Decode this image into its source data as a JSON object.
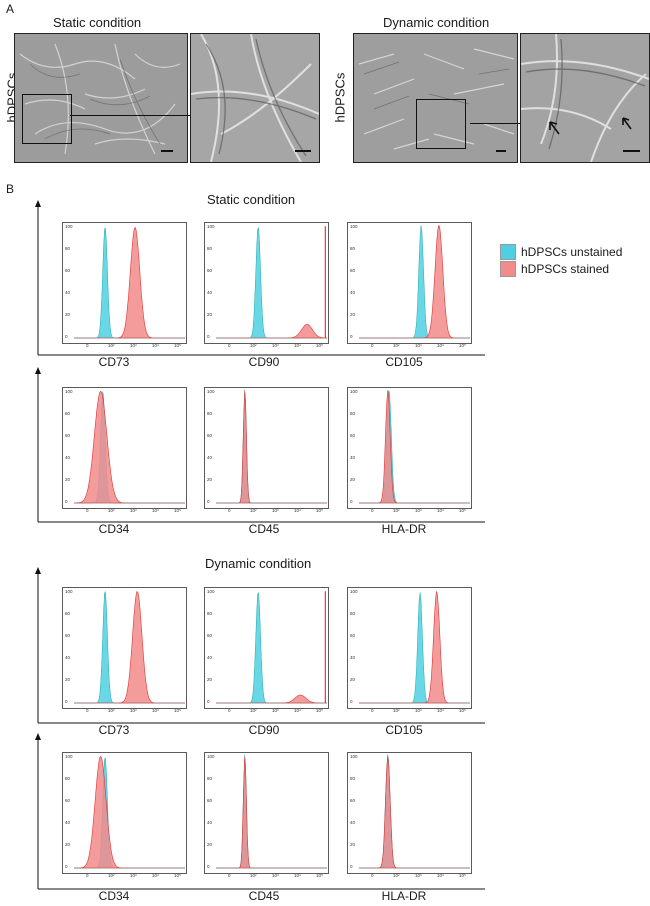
{
  "panel_a": {
    "letter": "A",
    "static_title": "Static condition",
    "dynamic_title": "Dynamic condition",
    "row_label": "hDPSCs"
  },
  "panel_b": {
    "letter": "B",
    "static_title": "Static condition",
    "dynamic_title": "Dynamic condition"
  },
  "legend": {
    "unstained": "hDPSCs unstained",
    "stained": "hDPSCs stained",
    "unstained_color": "#4fd0e2",
    "stained_color": "#f28b8b"
  },
  "markers": {
    "cd73": "CD73",
    "cd90": "CD90",
    "cd105": "CD105",
    "cd34": "CD34",
    "cd45": "CD45",
    "hladr": "HLA-DR"
  },
  "chart_data": [
    {
      "type": "area",
      "condition": "Static condition",
      "marker": "CD73",
      "ylim": [
        0,
        100
      ],
      "unstained_peak": 98,
      "stained_peak": 97
    },
    {
      "type": "area",
      "condition": "Static condition",
      "marker": "CD90",
      "ylim": [
        0,
        100
      ],
      "unstained_peak": 98,
      "stained_peak": 12
    },
    {
      "type": "area",
      "condition": "Static condition",
      "marker": "CD105",
      "ylim": [
        0,
        100
      ],
      "unstained_peak": 99,
      "stained_peak": 99
    },
    {
      "type": "area",
      "condition": "Static condition",
      "marker": "CD34",
      "ylim": [
        0,
        100
      ],
      "unstained_peak": 98,
      "stained_peak": 98
    },
    {
      "type": "area",
      "condition": "Static condition",
      "marker": "CD45",
      "ylim": [
        0,
        100
      ],
      "unstained_peak": 100,
      "stained_peak": 99
    },
    {
      "type": "area",
      "condition": "Static condition",
      "marker": "HLA-DR",
      "ylim": [
        0,
        100
      ],
      "unstained_peak": 100,
      "stained_peak": 99
    },
    {
      "type": "area",
      "condition": "Dynamic condition",
      "marker": "CD73",
      "ylim": [
        0,
        100
      ],
      "unstained_peak": 99,
      "stained_peak": 98
    },
    {
      "type": "area",
      "condition": "Dynamic condition",
      "marker": "CD90",
      "ylim": [
        0,
        100
      ],
      "unstained_peak": 98,
      "stained_peak": 7
    },
    {
      "type": "area",
      "condition": "Dynamic condition",
      "marker": "CD105",
      "ylim": [
        0,
        100
      ],
      "unstained_peak": 97,
      "stained_peak": 98
    },
    {
      "type": "area",
      "condition": "Dynamic condition",
      "marker": "CD34",
      "ylim": [
        0,
        100
      ],
      "unstained_peak": 98,
      "stained_peak": 98
    },
    {
      "type": "area",
      "condition": "Dynamic condition",
      "marker": "CD45",
      "ylim": [
        0,
        100
      ],
      "unstained_peak": 100,
      "stained_peak": 98
    },
    {
      "type": "area",
      "condition": "Dynamic condition",
      "marker": "HLA-DR",
      "ylim": [
        0,
        100
      ],
      "unstained_peak": 100,
      "stained_peak": 98
    }
  ]
}
